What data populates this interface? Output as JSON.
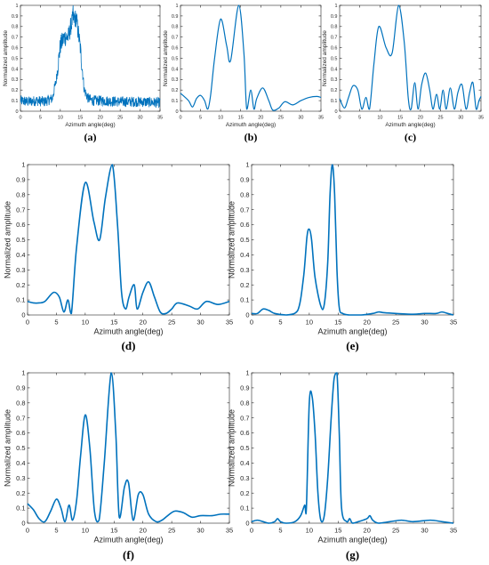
{
  "chart_data": [
    {
      "type": "line",
      "panel_label": "(a)",
      "xlabel": "Azimuth angle(deg)",
      "ylabel": "Normalized amplitude",
      "xlim": [
        0,
        35
      ],
      "ylim": [
        0,
        1
      ],
      "xticks": [
        0,
        5,
        10,
        15,
        20,
        25,
        30,
        35
      ],
      "yticks": [
        0,
        0.1,
        0.2,
        0.3,
        0.4,
        0.5,
        0.6,
        0.7,
        0.8,
        0.9,
        1
      ],
      "noisy": true,
      "series": [
        {
          "color": "#0072BD",
          "x": [
            0,
            2,
            4,
            6,
            8,
            9,
            10,
            11,
            12,
            13,
            14,
            15,
            16,
            17,
            18,
            20,
            25,
            30,
            35
          ],
          "y": [
            0.1,
            0.09,
            0.1,
            0.09,
            0.12,
            0.3,
            0.62,
            0.7,
            0.7,
            0.86,
            0.88,
            0.6,
            0.2,
            0.12,
            0.1,
            0.1,
            0.09,
            0.09,
            0.08
          ]
        }
      ]
    },
    {
      "type": "line",
      "panel_label": "(b)",
      "xlabel": "Azimuth angle(deg)",
      "ylabel": "Normalized amplitude",
      "xlim": [
        0,
        35
      ],
      "ylim": [
        0,
        1
      ],
      "xticks": [
        0,
        5,
        10,
        15,
        20,
        25,
        30,
        35
      ],
      "yticks": [
        0,
        0.1,
        0.2,
        0.3,
        0.4,
        0.5,
        0.6,
        0.7,
        0.8,
        0.9,
        1
      ],
      "noisy": false,
      "series": [
        {
          "color": "#0072BD",
          "x": [
            0,
            2,
            3,
            4,
            5,
            6,
            6.8,
            7.5,
            8.5,
            10,
            11.5,
            12.5,
            14.5,
            15.8,
            16.5,
            17.5,
            18.3,
            19,
            20.5,
            22,
            23,
            24.5,
            26,
            28,
            30,
            32,
            34,
            35
          ],
          "y": [
            0.17,
            0.1,
            0.04,
            0.12,
            0.15,
            0.1,
            0.02,
            0.15,
            0.5,
            0.87,
            0.62,
            0.48,
            1.0,
            0.55,
            0.02,
            0.2,
            0.02,
            0.12,
            0.22,
            0.1,
            0.01,
            0.03,
            0.09,
            0.06,
            0.1,
            0.13,
            0.14,
            0.13
          ]
        }
      ]
    },
    {
      "type": "line",
      "panel_label": "(c)",
      "xlabel": "Azimuth angle(deg)",
      "ylabel": "Normalized amplitude",
      "xlim": [
        0,
        35
      ],
      "ylim": [
        0,
        1
      ],
      "xticks": [
        0,
        5,
        10,
        15,
        20,
        25,
        30,
        35
      ],
      "yticks": [
        0,
        0.1,
        0.2,
        0.3,
        0.4,
        0.5,
        0.6,
        0.7,
        0.8,
        0.9,
        1
      ],
      "noisy": false,
      "series": [
        {
          "color": "#0072BD",
          "x": [
            0,
            1.2,
            2.2,
            3.3,
            4.5,
            5.5,
            6.5,
            7.4,
            8.5,
            9.7,
            11.5,
            13,
            14.6,
            16,
            17,
            17.7,
            18.6,
            19.4,
            20.3,
            21.3,
            22.3,
            23.1,
            24,
            24.8,
            25.6,
            26.4,
            27.4,
            28.4,
            29.3,
            30.3,
            31.3,
            32.2,
            33,
            33.8,
            34.5,
            35
          ],
          "y": [
            0.12,
            0.03,
            0.13,
            0.24,
            0.2,
            0.02,
            0.13,
            0.02,
            0.45,
            0.8,
            0.6,
            0.55,
            1.0,
            0.65,
            0.12,
            0.02,
            0.27,
            0.02,
            0.25,
            0.36,
            0.2,
            0.02,
            0.16,
            0.02,
            0.2,
            0.02,
            0.22,
            0.02,
            0.18,
            0.25,
            0.02,
            0.18,
            0.27,
            0.02,
            0.1,
            0.14
          ]
        }
      ]
    },
    {
      "type": "line",
      "panel_label": "(d)",
      "xlabel": "Azimuth angle(deg)",
      "ylabel": "Normalized amplitude",
      "xlim": [
        0,
        35
      ],
      "ylim": [
        0,
        1
      ],
      "xticks": [
        0,
        5,
        10,
        15,
        20,
        25,
        30,
        35
      ],
      "yticks": [
        0,
        0.1,
        0.2,
        0.3,
        0.4,
        0.5,
        0.6,
        0.7,
        0.8,
        0.9,
        1
      ],
      "noisy": false,
      "series": [
        {
          "color": "#0072BD",
          "x": [
            0,
            1,
            2,
            3,
            4.5,
            5.5,
            6.3,
            7,
            7.6,
            8.5,
            10,
            11.5,
            12.5,
            13.5,
            14.7,
            15.6,
            16.3,
            17,
            17.6,
            18.5,
            19,
            20,
            21,
            22,
            23,
            24,
            25,
            26,
            28,
            29.5,
            31,
            33,
            35
          ],
          "y": [
            0.09,
            0.08,
            0.08,
            0.09,
            0.15,
            0.12,
            0.02,
            0.1,
            0.01,
            0.45,
            0.88,
            0.62,
            0.5,
            0.78,
            1.0,
            0.6,
            0.15,
            0.04,
            0.12,
            0.2,
            0.04,
            0.15,
            0.22,
            0.12,
            0.02,
            0.01,
            0.04,
            0.08,
            0.06,
            0.04,
            0.09,
            0.07,
            0.09
          ]
        }
      ]
    },
    {
      "type": "line",
      "panel_label": "(e)",
      "xlabel": "Azimuth angle(deg)",
      "ylabel": "Normalized amplitude",
      "xlim": [
        0,
        35
      ],
      "ylim": [
        0,
        1
      ],
      "xticks": [
        0,
        5,
        10,
        15,
        20,
        25,
        30,
        35
      ],
      "yticks": [
        0,
        0.1,
        0.2,
        0.3,
        0.4,
        0.5,
        0.6,
        0.7,
        0.8,
        0.9,
        1
      ],
      "noisy": false,
      "series": [
        {
          "color": "#0072BD",
          "x": [
            0,
            1,
            2,
            3,
            4,
            6,
            8,
            9,
            9.6,
            10,
            10.4,
            11,
            12,
            12.6,
            13.2,
            13.6,
            14,
            14.4,
            14.8,
            15.2,
            15.8,
            17,
            19,
            21,
            22,
            23,
            25,
            28,
            30,
            32,
            33,
            34,
            35
          ],
          "y": [
            0.01,
            0.01,
            0.04,
            0.03,
            0.01,
            0.0,
            0.03,
            0.25,
            0.52,
            0.57,
            0.5,
            0.25,
            0.06,
            0.07,
            0.35,
            0.8,
            1.0,
            0.8,
            0.3,
            0.05,
            0.01,
            0.0,
            0.0,
            0.01,
            0.02,
            0.015,
            0.01,
            0.005,
            0.01,
            0.01,
            0.02,
            0.01,
            0.0
          ]
        }
      ]
    },
    {
      "type": "line",
      "panel_label": "(f)",
      "xlabel": "Azimuth angle(deg)",
      "ylabel": "Normalized amplitude",
      "xlim": [
        0,
        35
      ],
      "ylim": [
        0,
        1
      ],
      "xticks": [
        0,
        5,
        10,
        15,
        20,
        25,
        30,
        35
      ],
      "yticks": [
        0,
        0.1,
        0.2,
        0.3,
        0.4,
        0.5,
        0.6,
        0.7,
        0.8,
        0.9,
        1
      ],
      "noisy": false,
      "series": [
        {
          "color": "#0072BD",
          "x": [
            0,
            1,
            2,
            3,
            4,
            5,
            5.8,
            6.5,
            7.2,
            7.8,
            8.5,
            9.2,
            10,
            10.8,
            11.6,
            12.4,
            13.3,
            14.5,
            15.3,
            15.9,
            16.8,
            17.5,
            18.3,
            19.2,
            20,
            21,
            22.3,
            23.3,
            24.3,
            25.5,
            27,
            28.5,
            30,
            32,
            33.5,
            35
          ],
          "y": [
            0.13,
            0.09,
            0.03,
            0.01,
            0.08,
            0.16,
            0.1,
            0.01,
            0.12,
            0.02,
            0.15,
            0.45,
            0.72,
            0.5,
            0.08,
            0.02,
            0.4,
            1.0,
            0.6,
            0.04,
            0.24,
            0.27,
            0.02,
            0.19,
            0.19,
            0.06,
            0.01,
            0.02,
            0.05,
            0.08,
            0.07,
            0.04,
            0.05,
            0.05,
            0.06,
            0.06
          ]
        }
      ]
    },
    {
      "type": "line",
      "panel_label": "(g)",
      "xlabel": "Azimuth angle(deg)",
      "ylabel": "Normalized amplitude",
      "xlim": [
        0,
        35
      ],
      "ylim": [
        0,
        1
      ],
      "xticks": [
        0,
        5,
        10,
        15,
        20,
        25,
        30,
        35
      ],
      "yticks": [
        0,
        0.1,
        0.2,
        0.3,
        0.4,
        0.5,
        0.6,
        0.7,
        0.8,
        0.9,
        1
      ],
      "noisy": false,
      "series": [
        {
          "color": "#0072BD",
          "x": [
            0,
            1,
            2,
            3,
            4,
            4.5,
            5,
            6,
            7.5,
            8.5,
            9.2,
            9.5,
            10,
            10.5,
            11,
            11.5,
            12,
            12.6,
            13.2,
            13.8,
            14.3,
            14.8,
            15.2,
            15.6,
            16.5,
            17,
            17.5,
            18.5,
            20,
            20.5,
            21,
            22,
            24,
            26,
            28,
            31,
            33,
            35
          ],
          "y": [
            0.01,
            0.02,
            0.01,
            0.0,
            0.01,
            0.03,
            0.01,
            0.0,
            0.01,
            0.05,
            0.12,
            0.1,
            0.8,
            0.84,
            0.6,
            0.2,
            0.02,
            0.05,
            0.3,
            0.7,
            0.96,
            1.0,
            0.6,
            0.1,
            0.01,
            0.03,
            0.0,
            0.01,
            0.03,
            0.05,
            0.02,
            0.0,
            0.01,
            0.02,
            0.01,
            0.02,
            0.01,
            0.0
          ]
        }
      ]
    }
  ]
}
